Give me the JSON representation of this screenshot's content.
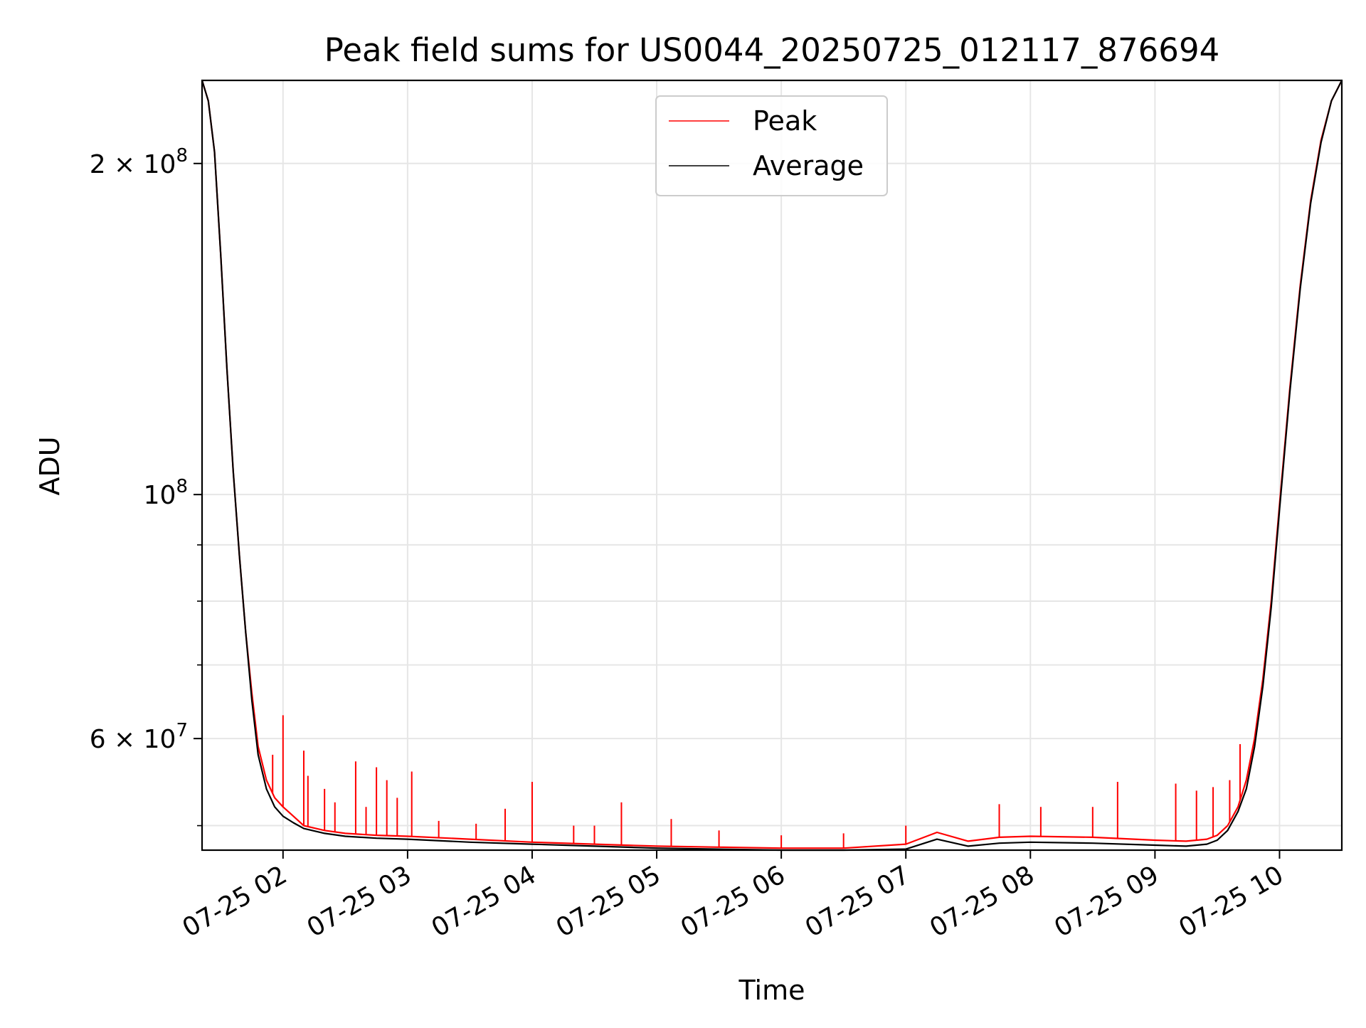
{
  "chart_data": {
    "type": "line",
    "title": "Peak field sums for US0044_20250725_012117_876694",
    "xlabel": "Time",
    "ylabel": "ADU",
    "y_scale": "log",
    "grid": true,
    "legend": {
      "placement": "top-center",
      "entries": [
        "Peak",
        "Average"
      ]
    },
    "xlim": [
      "2025-07-25 01:21",
      "2025-07-25 10:30"
    ],
    "ylim": [
      47500000,
      238000000
    ],
    "x_ticks": [
      {
        "value": "2025-07-25 02:00",
        "label": "07-25 02"
      },
      {
        "value": "2025-07-25 03:00",
        "label": "07-25 03"
      },
      {
        "value": "2025-07-25 04:00",
        "label": "07-25 04"
      },
      {
        "value": "2025-07-25 05:00",
        "label": "07-25 05"
      },
      {
        "value": "2025-07-25 06:00",
        "label": "07-25 06"
      },
      {
        "value": "2025-07-25 07:00",
        "label": "07-25 07"
      },
      {
        "value": "2025-07-25 08:00",
        "label": "07-25 08"
      },
      {
        "value": "2025-07-25 09:00",
        "label": "07-25 09"
      },
      {
        "value": "2025-07-25 10:00",
        "label": "07-25 10"
      }
    ],
    "y_ticks_major": [
      {
        "value": 60000000,
        "mant": "6",
        "exp": "7"
      },
      {
        "value": 100000000,
        "mant": "",
        "exp": "8"
      },
      {
        "value": 200000000,
        "mant": "2",
        "exp": "8"
      }
    ],
    "y_ticks_minor": [
      50000000,
      70000000,
      80000000,
      90000000
    ],
    "series": [
      {
        "name": "Peak",
        "color": "#ff0000",
        "x": [
          "2025-07-25 01:21",
          "2025-07-25 01:24",
          "2025-07-25 01:27",
          "2025-07-25 01:30",
          "2025-07-25 01:33",
          "2025-07-25 01:36",
          "2025-07-25 01:39",
          "2025-07-25 01:42",
          "2025-07-25 01:45",
          "2025-07-25 01:48",
          "2025-07-25 01:52",
          "2025-07-25 01:56",
          "2025-07-25 02:00",
          "2025-07-25 02:05",
          "2025-07-25 02:10",
          "2025-07-25 02:20",
          "2025-07-25 02:30",
          "2025-07-25 02:45",
          "2025-07-25 03:00",
          "2025-07-25 03:30",
          "2025-07-25 04:00",
          "2025-07-25 04:30",
          "2025-07-25 05:00",
          "2025-07-25 05:30",
          "2025-07-25 06:00",
          "2025-07-25 06:30",
          "2025-07-25 07:00",
          "2025-07-25 07:15",
          "2025-07-25 07:30",
          "2025-07-25 07:45",
          "2025-07-25 08:00",
          "2025-07-25 08:30",
          "2025-07-25 09:00",
          "2025-07-25 09:15",
          "2025-07-25 09:25",
          "2025-07-25 09:30",
          "2025-07-25 09:35",
          "2025-07-25 09:40",
          "2025-07-25 09:44",
          "2025-07-25 09:48",
          "2025-07-25 09:52",
          "2025-07-25 09:56",
          "2025-07-25 10:00",
          "2025-07-25 10:05",
          "2025-07-25 10:10",
          "2025-07-25 10:15",
          "2025-07-25 10:20",
          "2025-07-25 10:25",
          "2025-07-25 10:30"
        ],
        "y": [
          238000000,
          228000000,
          205000000,
          165000000,
          130000000,
          105000000,
          88000000,
          75000000,
          66000000,
          59000000,
          55000000,
          53000000,
          52000000,
          51000000,
          50000000,
          49500000,
          49200000,
          49000000,
          48900000,
          48600000,
          48300000,
          48100000,
          47900000,
          47800000,
          47700000,
          47700000,
          48100000,
          49300000,
          48400000,
          48800000,
          48900000,
          48800000,
          48500000,
          48400000,
          48600000,
          49000000,
          50000000,
          52000000,
          55000000,
          60000000,
          68000000,
          80000000,
          98000000,
          125000000,
          155000000,
          185000000,
          210000000,
          228000000,
          238000000
        ]
      },
      {
        "name": "Average",
        "color": "#000000",
        "x": [
          "2025-07-25 01:21",
          "2025-07-25 01:24",
          "2025-07-25 01:27",
          "2025-07-25 01:30",
          "2025-07-25 01:33",
          "2025-07-25 01:36",
          "2025-07-25 01:39",
          "2025-07-25 01:42",
          "2025-07-25 01:45",
          "2025-07-25 01:48",
          "2025-07-25 01:52",
          "2025-07-25 01:56",
          "2025-07-25 02:00",
          "2025-07-25 02:05",
          "2025-07-25 02:10",
          "2025-07-25 02:20",
          "2025-07-25 02:30",
          "2025-07-25 02:45",
          "2025-07-25 03:00",
          "2025-07-25 03:30",
          "2025-07-25 04:00",
          "2025-07-25 04:30",
          "2025-07-25 05:00",
          "2025-07-25 05:30",
          "2025-07-25 06:00",
          "2025-07-25 06:30",
          "2025-07-25 07:00",
          "2025-07-25 07:15",
          "2025-07-25 07:30",
          "2025-07-25 07:45",
          "2025-07-25 08:00",
          "2025-07-25 08:30",
          "2025-07-25 09:00",
          "2025-07-25 09:15",
          "2025-07-25 09:25",
          "2025-07-25 09:30",
          "2025-07-25 09:35",
          "2025-07-25 09:40",
          "2025-07-25 09:44",
          "2025-07-25 09:48",
          "2025-07-25 09:52",
          "2025-07-25 09:56",
          "2025-07-25 10:00",
          "2025-07-25 10:05",
          "2025-07-25 10:10",
          "2025-07-25 10:15",
          "2025-07-25 10:20",
          "2025-07-25 10:25",
          "2025-07-25 10:30"
        ],
        "y": [
          238000000,
          228000000,
          205000000,
          165000000,
          130000000,
          105000000,
          88000000,
          75000000,
          65000000,
          58000000,
          54000000,
          52000000,
          51000000,
          50300000,
          49700000,
          49200000,
          48900000,
          48700000,
          48600000,
          48300000,
          48100000,
          47900000,
          47700000,
          47600000,
          47500000,
          47500000,
          47600000,
          48600000,
          47900000,
          48200000,
          48300000,
          48200000,
          48000000,
          47900000,
          48100000,
          48500000,
          49500000,
          51500000,
          54000000,
          59000000,
          67000000,
          79000000,
          97000000,
          124000000,
          154000000,
          184000000,
          209000000,
          228000000,
          238000000
        ]
      }
    ],
    "spikes": [
      {
        "x": "2025-07-25 01:55",
        "y": 58000000
      },
      {
        "x": "2025-07-25 02:00",
        "y": 63000000
      },
      {
        "x": "2025-07-25 02:10",
        "y": 58500000
      },
      {
        "x": "2025-07-25 02:12",
        "y": 55500000
      },
      {
        "x": "2025-07-25 02:20",
        "y": 54000000
      },
      {
        "x": "2025-07-25 02:25",
        "y": 52500000
      },
      {
        "x": "2025-07-25 02:35",
        "y": 57200000
      },
      {
        "x": "2025-07-25 02:40",
        "y": 52000000
      },
      {
        "x": "2025-07-25 02:45",
        "y": 56500000
      },
      {
        "x": "2025-07-25 02:50",
        "y": 55000000
      },
      {
        "x": "2025-07-25 02:55",
        "y": 53000000
      },
      {
        "x": "2025-07-25 03:02",
        "y": 56000000
      },
      {
        "x": "2025-07-25 03:15",
        "y": 50500000
      },
      {
        "x": "2025-07-25 03:33",
        "y": 50200000
      },
      {
        "x": "2025-07-25 03:47",
        "y": 51800000
      },
      {
        "x": "2025-07-25 04:00",
        "y": 54800000
      },
      {
        "x": "2025-07-25 04:20",
        "y": 50000000
      },
      {
        "x": "2025-07-25 04:30",
        "y": 50000000
      },
      {
        "x": "2025-07-25 04:43",
        "y": 52500000
      },
      {
        "x": "2025-07-25 05:07",
        "y": 50700000
      },
      {
        "x": "2025-07-25 05:30",
        "y": 49500000
      },
      {
        "x": "2025-07-25 06:00",
        "y": 49000000
      },
      {
        "x": "2025-07-25 06:30",
        "y": 49200000
      },
      {
        "x": "2025-07-25 07:00",
        "y": 50000000
      },
      {
        "x": "2025-07-25 07:45",
        "y": 52300000
      },
      {
        "x": "2025-07-25 08:05",
        "y": 52000000
      },
      {
        "x": "2025-07-25 08:30",
        "y": 52000000
      },
      {
        "x": "2025-07-25 08:42",
        "y": 54800000
      },
      {
        "x": "2025-07-25 09:10",
        "y": 54600000
      },
      {
        "x": "2025-07-25 09:20",
        "y": 53800000
      },
      {
        "x": "2025-07-25 09:28",
        "y": 54200000
      },
      {
        "x": "2025-07-25 09:36",
        "y": 55000000
      },
      {
        "x": "2025-07-25 09:41",
        "y": 59300000
      }
    ]
  }
}
